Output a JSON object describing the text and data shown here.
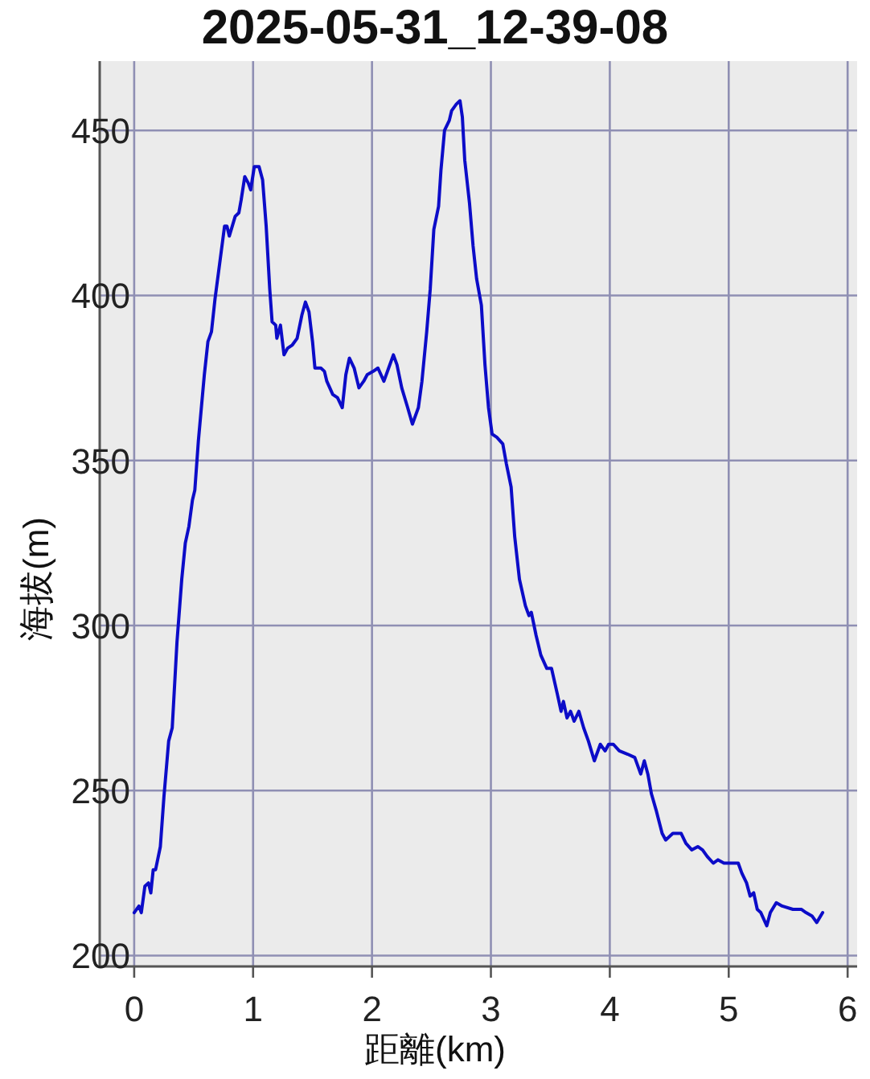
{
  "chart_data": {
    "type": "line",
    "title": "2025-05-31_12-39-08",
    "xlabel": "距離(km)",
    "ylabel": "海拔(m)",
    "x": [
      0,
      0.04,
      0.06,
      0.09,
      0.12,
      0.14,
      0.16,
      0.18,
      0.22,
      0.25,
      0.29,
      0.32,
      0.36,
      0.4,
      0.43,
      0.46,
      0.49,
      0.51,
      0.54,
      0.59,
      0.62,
      0.65,
      0.68,
      0.72,
      0.76,
      0.78,
      0.8,
      0.85,
      0.88,
      0.9,
      0.93,
      0.96,
      0.98,
      1.01,
      1.05,
      1.08,
      1.11,
      1.14,
      1.16,
      1.19,
      1.2,
      1.23,
      1.26,
      1.29,
      1.33,
      1.37,
      1.41,
      1.44,
      1.47,
      1.5,
      1.52,
      1.57,
      1.6,
      1.62,
      1.67,
      1.71,
      1.75,
      1.78,
      1.81,
      1.85,
      1.89,
      1.93,
      1.96,
      2.01,
      2.05,
      2.1,
      2.14,
      2.18,
      2.21,
      2.25,
      2.3,
      2.34,
      2.39,
      2.42,
      2.46,
      2.49,
      2.52,
      2.56,
      2.58,
      2.61,
      2.65,
      2.67,
      2.71,
      2.74,
      2.76,
      2.78,
      2.82,
      2.85,
      2.88,
      2.92,
      2.95,
      2.98,
      3.01,
      3.05,
      3.1,
      3.13,
      3.17,
      3.2,
      3.24,
      3.29,
      3.32,
      3.34,
      3.38,
      3.42,
      3.47,
      3.51,
      3.56,
      3.59,
      3.61,
      3.64,
      3.67,
      3.7,
      3.74,
      3.78,
      3.82,
      3.87,
      3.92,
      3.96,
      3.99,
      4.03,
      4.08,
      4.15,
      4.21,
      4.26,
      4.29,
      4.32,
      4.35,
      4.39,
      4.44,
      4.47,
      4.53,
      4.6,
      4.64,
      4.69,
      4.74,
      4.78,
      4.82,
      4.87,
      4.91,
      4.96,
      5.02,
      5.08,
      5.11,
      5.15,
      5.18,
      5.21,
      5.24,
      5.27,
      5.32,
      5.35,
      5.4,
      5.45,
      5.54,
      5.61,
      5.65,
      5.7,
      5.74,
      5.79
    ],
    "values": [
      213,
      215,
      213,
      221,
      222,
      219,
      226,
      226,
      233,
      248,
      265,
      269,
      295,
      314,
      325,
      330,
      338,
      341,
      356,
      376,
      386,
      389,
      399,
      410,
      421,
      421,
      418,
      424,
      425,
      429,
      436,
      434,
      432,
      439,
      439,
      435,
      421,
      402,
      392,
      391,
      387,
      391,
      382,
      384,
      385,
      387,
      394,
      398,
      395,
      386,
      378,
      378,
      377,
      374,
      370,
      369,
      366,
      376,
      381,
      378,
      372,
      374,
      376,
      377,
      378,
      374,
      378,
      382,
      379,
      372,
      366,
      361,
      366,
      374,
      389,
      402,
      420,
      427,
      438,
      450,
      453,
      456,
      458,
      459,
      454,
      441,
      428,
      415,
      405,
      397,
      379,
      366,
      358,
      357,
      355,
      349,
      342,
      327,
      314,
      306,
      303,
      304,
      297,
      291,
      287,
      287,
      279,
      274,
      277,
      272,
      274,
      271,
      274,
      269,
      265,
      259,
      264,
      262,
      264,
      264,
      262,
      261,
      260,
      255,
      259,
      255,
      249,
      244,
      237,
      235,
      237,
      237,
      234,
      232,
      233,
      232,
      230,
      228,
      229,
      228,
      228,
      228,
      225,
      222,
      218,
      219,
      214,
      213,
      209,
      213,
      216,
      215,
      214,
      214,
      213,
      212,
      210,
      213
    ],
    "color": "#0c0cc8",
    "xlim": [
      -0.29,
      6.08
    ],
    "ylim": [
      196.7,
      471
    ],
    "xticks": [
      0,
      1,
      2,
      3,
      4,
      5,
      6
    ],
    "yticks": [
      200,
      250,
      300,
      350,
      400,
      450
    ],
    "grid": true
  }
}
